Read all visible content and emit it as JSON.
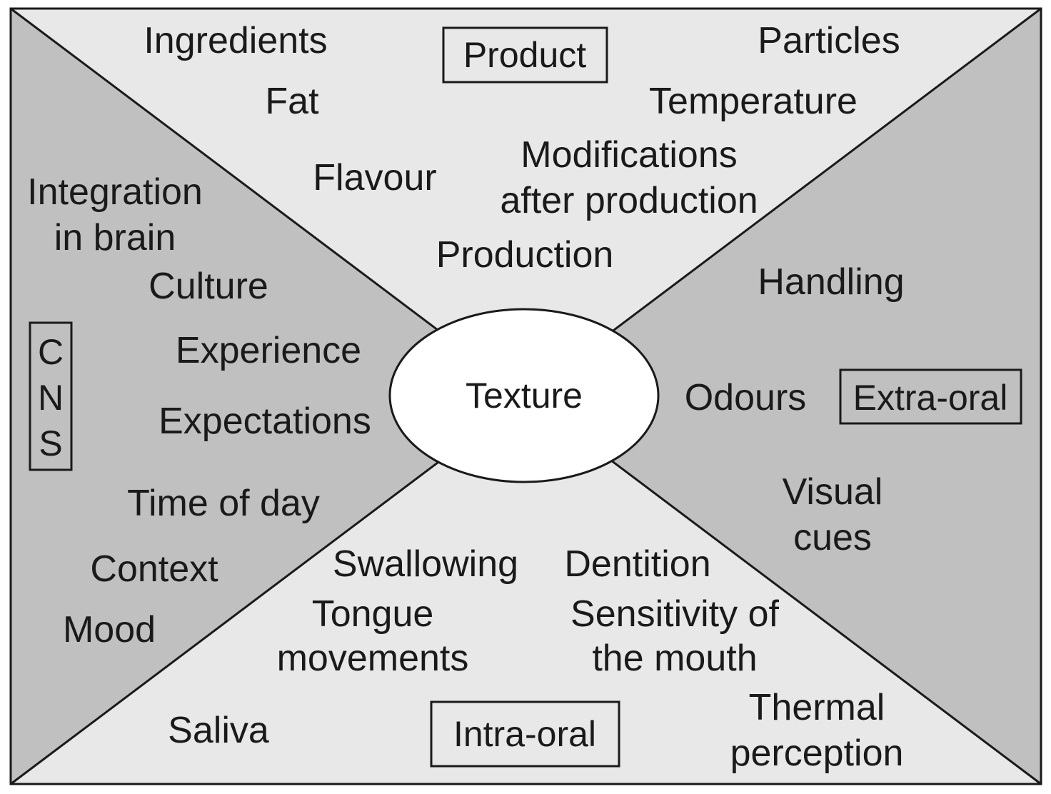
{
  "center": {
    "label": "Texture"
  },
  "regions": {
    "product": {
      "title": "Product",
      "items": [
        "Ingredients",
        "Particles",
        "Fat",
        "Temperature",
        "Flavour",
        "Modifications",
        "after production",
        "Production"
      ]
    },
    "cns": {
      "title_letters": [
        "C",
        "N",
        "S"
      ],
      "items": [
        "Integration",
        "in brain",
        "Culture",
        "Experience",
        "Expectations",
        "Time of day",
        "Context",
        "Mood"
      ]
    },
    "extra_oral": {
      "title": "Extra-oral",
      "items": [
        "Handling",
        "Odours",
        "Visual",
        "cues"
      ]
    },
    "intra_oral": {
      "title": "Intra-oral",
      "items": [
        "Swallowing",
        "Dentition",
        "Tongue",
        "movements",
        "Sensitivity of",
        "the mouth",
        "Saliva",
        "Thermal",
        "perception"
      ]
    }
  },
  "colors": {
    "light_region": "#e8e8e8",
    "dark_region": "#c0c0c0",
    "ellipse_fill": "#ffffff",
    "stroke": "#1a1a1a"
  }
}
